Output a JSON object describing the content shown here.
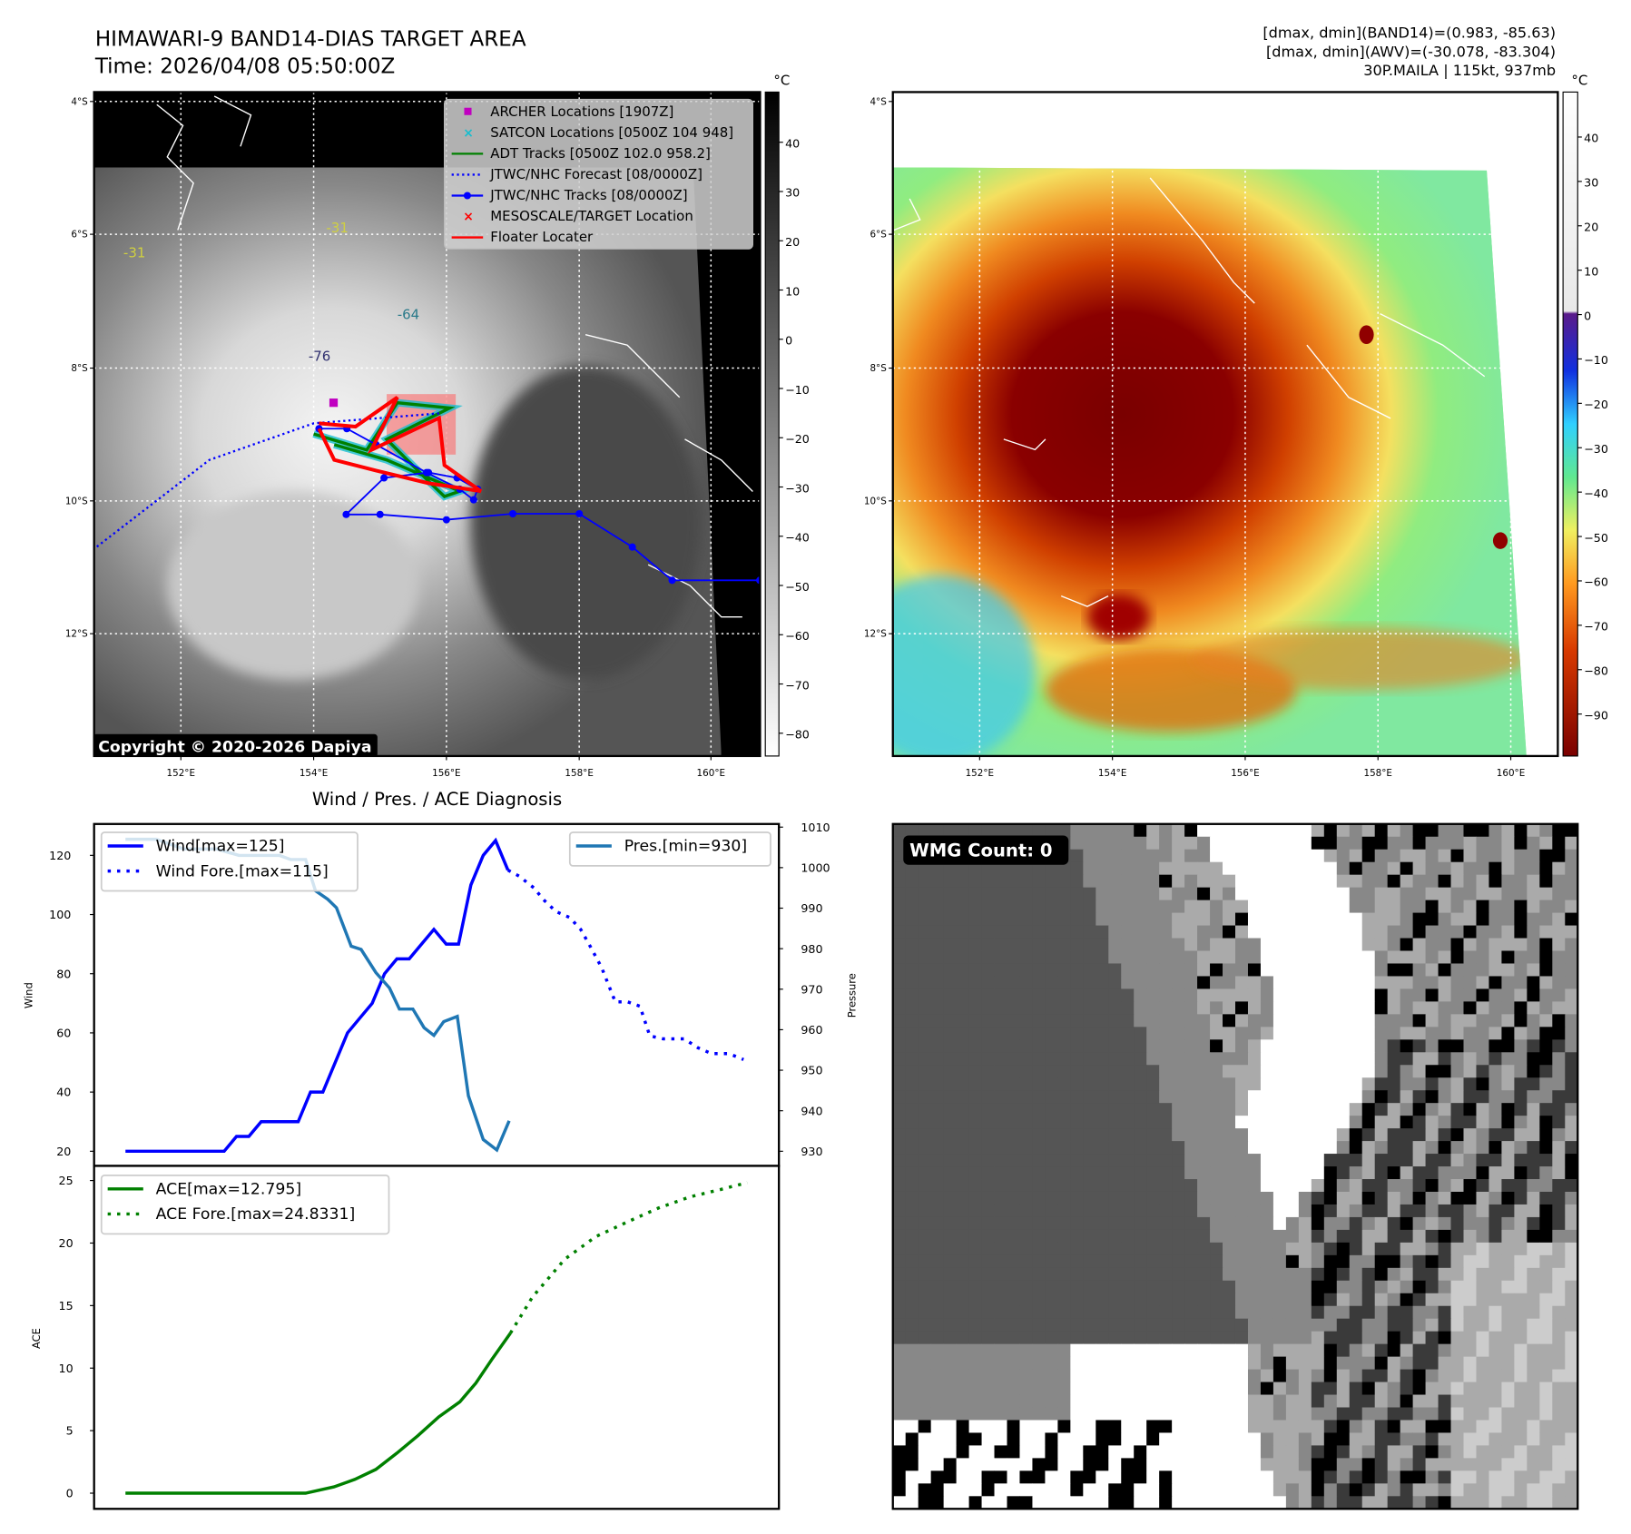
{
  "header": {
    "title": "HIMAWARI-9 BAND14-DIAS TARGET AREA",
    "time": "Time: 2026/04/08 05:50:00Z",
    "stats_band14": "[dmax, dmin](BAND14)=(0.983, -85.63)",
    "stats_awv": "[dmax, dmin](AWV)=(-30.078, -83.304)",
    "storm": "30P.MAILA | 115kt, 937mb"
  },
  "map_left": {
    "lat_ticks": [
      "4°S",
      "6°S",
      "8°S",
      "10°S",
      "12°S"
    ],
    "lon_ticks": [
      "152°E",
      "154°E",
      "156°E",
      "158°E",
      "160°E"
    ],
    "colorbar_unit": "°C",
    "colorbar_ticks": [
      "40",
      "30",
      "20",
      "10",
      "0",
      "−10",
      "−20",
      "−30",
      "−40",
      "−50",
      "−60",
      "−70",
      "−80"
    ],
    "copyright": "Copyright © 2020-2026 Dapiya",
    "contour_labels": [
      "-31",
      "-64",
      "-76",
      "-31"
    ],
    "legend": [
      {
        "label": "ARCHER Locations [1907Z]",
        "color": "#c000c0",
        "icon": "square-marker-icon"
      },
      {
        "label": "SATCON Locations [0500Z 104 948]",
        "color": "#17becf",
        "icon": "x-marker-icon"
      },
      {
        "label": "ADT Tracks [0500Z 102.0 958.2]",
        "color": "#008000",
        "icon": "line-icon"
      },
      {
        "label": "JTWC/NHC Forecast [08/0000Z]",
        "color": "#0000ff",
        "icon": "dotted-line-icon"
      },
      {
        "label": "JTWC/NHC Tracks [08/0000Z]",
        "color": "#0000ff",
        "icon": "line-dot-icon"
      },
      {
        "label": "MESOSCALE/TARGET Location",
        "color": "#ff0000",
        "icon": "x-marker-icon"
      },
      {
        "label": "Floater Locater",
        "color": "#ff0000",
        "icon": "line-icon"
      }
    ],
    "jtwc_track": [
      [
        160.72,
        11.2
      ],
      [
        159.4,
        11.2
      ],
      [
        158.8,
        10.7
      ],
      [
        158.0,
        10.2
      ],
      [
        157.0,
        10.2
      ],
      [
        156.0,
        10.29
      ],
      [
        155.0,
        10.21
      ],
      [
        154.49,
        10.21
      ],
      [
        155.06,
        9.66
      ],
      [
        155.73,
        9.58
      ],
      [
        156.16,
        9.66
      ],
      [
        156.47,
        9.83
      ],
      [
        156.41,
        9.99
      ],
      [
        156.2,
        9.83
      ],
      [
        155.7,
        9.58
      ],
      [
        154.94,
        9.16
      ],
      [
        154.5,
        8.92
      ],
      [
        154.08,
        8.92
      ]
    ],
    "jtwc_forecast": [
      [
        155.89,
        8.69
      ],
      [
        154.0,
        8.84
      ],
      [
        152.43,
        9.39
      ],
      [
        150.69,
        10.73
      ]
    ],
    "floater_track": [
      [
        154.08,
        8.84
      ],
      [
        154.63,
        8.89
      ],
      [
        155.26,
        8.45
      ],
      [
        154.87,
        9.24
      ],
      [
        155.89,
        8.76
      ],
      [
        155.97,
        9.47
      ],
      [
        156.52,
        9.86
      ],
      [
        155.73,
        9.74
      ],
      [
        154.94,
        9.55
      ],
      [
        154.31,
        9.39
      ],
      [
        154.08,
        8.92
      ]
    ],
    "adt_track": [
      [
        154.0,
        9.0
      ],
      [
        154.8,
        9.24
      ],
      [
        155.26,
        8.53
      ],
      [
        156.05,
        8.61
      ],
      [
        155.1,
        9.08
      ],
      [
        155.73,
        9.71
      ],
      [
        155.97,
        9.94
      ],
      [
        156.2,
        9.86
      ],
      [
        155.1,
        9.39
      ],
      [
        154.31,
        9.16
      ]
    ],
    "archer": [
      [
        154.3,
        8.53
      ]
    ],
    "target_box": [
      [
        155.1,
        8.4
      ],
      [
        156.14,
        9.31
      ]
    ]
  },
  "map_right": {
    "lat_ticks": [
      "4°S",
      "6°S",
      "8°S",
      "10°S",
      "12°S"
    ],
    "lon_ticks": [
      "152°E",
      "154°E",
      "156°E",
      "158°E",
      "160°E"
    ],
    "colorbar_unit": "°C",
    "colorbar_ticks": [
      "40",
      "30",
      "20",
      "10",
      "0",
      "−10",
      "−20",
      "−30",
      "−40",
      "−50",
      "−60",
      "−70",
      "−80",
      "−90"
    ]
  },
  "diagnosis_title": "Wind / Pres. / ACE Diagnosis",
  "wmg": {
    "label": "WMG Count: 0"
  },
  "chart_data": [
    {
      "type": "line",
      "title": "Wind / Pres. / ACE Diagnosis",
      "xlabel": "",
      "ylabel": "Wind",
      "ylabel_right": "Pressure",
      "ylim": [
        20,
        125
      ],
      "ylim_right": [
        930,
        1010
      ],
      "yticks": [
        "120",
        "100",
        "80",
        "60",
        "40",
        "20"
      ],
      "yticks_right": [
        "1010",
        "1000",
        "990",
        "980",
        "970",
        "960",
        "950",
        "940",
        "930"
      ],
      "series": [
        {
          "name": "Wind[max=125]",
          "axis": "left",
          "style": "solid",
          "color": "#0000ff",
          "x": [
            0,
            1,
            2,
            3,
            4,
            5,
            6,
            7,
            8,
            9,
            10,
            11,
            12,
            13,
            14,
            15,
            16,
            17,
            18,
            19,
            20,
            21,
            22,
            23,
            24,
            25,
            26,
            27,
            28,
            29,
            30,
            31
          ],
          "values": [
            20,
            20,
            20,
            20,
            20,
            20,
            20,
            20,
            20,
            25,
            25,
            30,
            30,
            30,
            30,
            40,
            40,
            50,
            60,
            65,
            70,
            80,
            85,
            85,
            90,
            95,
            90,
            90,
            110,
            120,
            125,
            115
          ]
        },
        {
          "name": "Wind Fore.[max=115]",
          "axis": "left",
          "style": "dotted",
          "color": "#0000ff",
          "x": [
            31,
            31.9,
            33.1,
            33.9,
            34.9,
            36,
            36.9,
            37.7,
            38.6,
            39.7,
            40.7,
            41.7,
            42.5,
            43.6,
            45.3,
            46.4,
            47.5,
            48.9,
            50.1
          ],
          "values": [
            115,
            113,
            109,
            105,
            101,
            99,
            95,
            89,
            82,
            70.5,
            70.5,
            69,
            59,
            58,
            58,
            55,
            53,
            53,
            51
          ]
        },
        {
          "name": "Pres.[min=930]",
          "axis": "right",
          "style": "solid",
          "color": "#1f77b4",
          "x": [
            0,
            2.5,
            4.7,
            7.4,
            9.2,
            12.5,
            13.4,
            14.6,
            15.4,
            16.4,
            17.1,
            18.3,
            19.1,
            20.3,
            21.4,
            22.2,
            23.3,
            24.2,
            25,
            25.8,
            26.9,
            27.8,
            29,
            30.1,
            31.1
          ],
          "values": [
            1007,
            1007,
            1004.6,
            1004.6,
            1003,
            1003,
            1002,
            1002,
            994.3,
            992.2,
            990.1,
            980.6,
            979.8,
            974.1,
            970.3,
            965.1,
            965.1,
            960.5,
            958.6,
            962,
            963.3,
            943.7,
            932.9,
            930.3,
            937.5
          ]
        }
      ]
    },
    {
      "type": "line",
      "title": "",
      "xlabel": "",
      "ylabel": "ACE",
      "ylim": [
        0,
        25
      ],
      "yticks": [
        "25",
        "20",
        "15",
        "10",
        "5",
        "0"
      ],
      "series": [
        {
          "name": "ACE[max=12.795]",
          "style": "solid",
          "color": "#008000",
          "x": [
            0,
            14.6,
            16.9,
            18.6,
            20.3,
            22,
            23.7,
            25.4,
            27.1,
            28.4,
            29.7,
            31.2
          ],
          "values": [
            0,
            0,
            0.5,
            1.1,
            1.9,
            3.2,
            4.6,
            6.1,
            7.3,
            8.8,
            10.7,
            12.795
          ]
        },
        {
          "name": "ACE Fore.[max=24.8331]",
          "style": "dotted",
          "color": "#008000",
          "x": [
            31.2,
            33,
            35.6,
            38.1,
            40.7,
            43.2,
            45.8,
            48.3,
            50.4
          ],
          "values": [
            12.795,
            15.7,
            18.7,
            20.5,
            21.7,
            22.8,
            23.7,
            24.3,
            24.8331
          ]
        }
      ]
    }
  ]
}
